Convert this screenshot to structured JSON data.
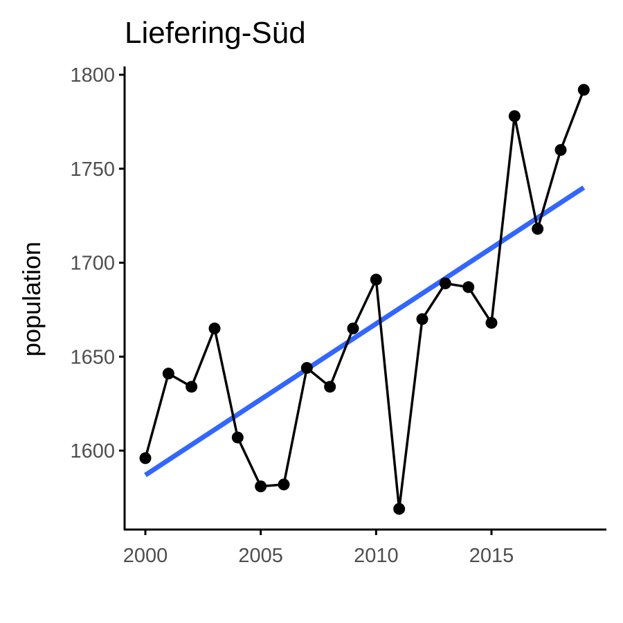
{
  "chart_data": {
    "type": "line",
    "title": "Liefering-Süd",
    "xlabel": "",
    "ylabel": "population",
    "x_ticks": [
      2000,
      2005,
      2010,
      2015
    ],
    "y_ticks": [
      1600,
      1650,
      1700,
      1750,
      1800
    ],
    "ylim": [
      1565,
      1805
    ],
    "xlim": [
      1999,
      2020
    ],
    "grid": false,
    "series": [
      {
        "color": "#000000",
        "points": true,
        "x": [
          2000,
          2001,
          2002,
          2003,
          2004,
          2005,
          2006,
          2007,
          2008,
          2009,
          2010,
          2011,
          2012,
          2013,
          2014,
          2015,
          2016,
          2017,
          2018,
          2019
        ],
        "values": [
          1596,
          1641,
          1634,
          1665,
          1607,
          1581,
          1582,
          1644,
          1634,
          1665,
          1691,
          1569,
          1670,
          1689,
          1687,
          1668,
          1778,
          1718,
          1760,
          1792
        ]
      }
    ],
    "trendline": {
      "color": "#3366FF",
      "x": [
        2000,
        2019
      ],
      "y": [
        1587,
        1740
      ]
    }
  }
}
